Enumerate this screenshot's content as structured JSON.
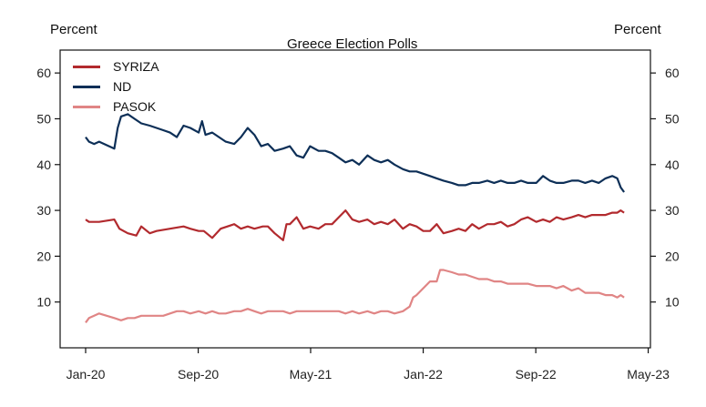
{
  "chart_data": {
    "type": "line",
    "title": "Greece Election Polls",
    "ylabel_left": "Percent",
    "ylabel_right": "Percent",
    "ylim": [
      0,
      65
    ],
    "xlim": [
      2020.0,
      2023.33
    ],
    "yticks": [
      10,
      20,
      30,
      40,
      50,
      60
    ],
    "xticks": [
      {
        "label": "Jan-20",
        "x": 2020.0
      },
      {
        "label": "Sep-20",
        "x": 2020.667
      },
      {
        "label": "May-21",
        "x": 2021.333
      },
      {
        "label": "Jan-22",
        "x": 2022.0
      },
      {
        "label": "Sep-22",
        "x": 2022.667
      },
      {
        "label": "May-23",
        "x": 2023.333
      }
    ],
    "grid": false,
    "legend": "top-left",
    "series": [
      {
        "name": "SYRIZA",
        "color": "#b22a2e",
        "x": [
          2020.0,
          2020.02,
          2020.05,
          2020.08,
          2020.17,
          2020.2,
          2020.25,
          2020.3,
          2020.33,
          2020.38,
          2020.42,
          2020.5,
          2020.58,
          2020.62,
          2020.67,
          2020.7,
          2020.75,
          2020.8,
          2020.88,
          2020.92,
          2020.96,
          2021.0,
          2021.05,
          2021.08,
          2021.12,
          2021.17,
          2021.19,
          2021.21,
          2021.25,
          2021.29,
          2021.33,
          2021.38,
          2021.42,
          2021.46,
          2021.5,
          2021.54,
          2021.58,
          2021.62,
          2021.67,
          2021.71,
          2021.75,
          2021.79,
          2021.83,
          2021.88,
          2021.92,
          2021.96,
          2022.0,
          2022.04,
          2022.08,
          2022.12,
          2022.17,
          2022.21,
          2022.25,
          2022.29,
          2022.33,
          2022.38,
          2022.42,
          2022.46,
          2022.5,
          2022.54,
          2022.58,
          2022.62,
          2022.67,
          2022.71,
          2022.75,
          2022.79,
          2022.83,
          2022.88,
          2022.92,
          2022.96,
          2023.0,
          2023.04,
          2023.08,
          2023.12,
          2023.15,
          2023.17,
          2023.19
        ],
        "values": [
          28,
          27.5,
          27.5,
          27.5,
          28,
          26,
          25,
          24.5,
          26.5,
          25,
          25.5,
          26,
          26.5,
          26,
          25.5,
          25.5,
          24,
          26,
          27,
          26,
          26.5,
          26,
          26.5,
          26.5,
          25,
          23.5,
          27,
          27,
          28.5,
          26,
          26.5,
          26,
          27,
          27,
          28.5,
          30,
          28,
          27.5,
          28,
          27,
          27.5,
          27,
          28,
          26,
          27,
          26.5,
          25.5,
          25.5,
          27,
          25,
          25.5,
          26,
          25.5,
          27,
          26,
          27,
          27,
          27.5,
          26.5,
          27,
          28,
          28.5,
          27.5,
          28,
          27.5,
          28.5,
          28,
          28.5,
          29,
          28.5,
          29,
          29,
          29,
          29.5,
          29.5,
          30,
          29.5
        ]
      },
      {
        "name": "ND",
        "color": "#0d2f57",
        "x": [
          2020.0,
          2020.02,
          2020.05,
          2020.08,
          2020.17,
          2020.19,
          2020.21,
          2020.25,
          2020.29,
          2020.33,
          2020.38,
          2020.42,
          2020.46,
          2020.5,
          2020.54,
          2020.58,
          2020.62,
          2020.67,
          2020.69,
          2020.71,
          2020.75,
          2020.79,
          2020.83,
          2020.88,
          2020.92,
          2020.96,
          2021.0,
          2021.04,
          2021.08,
          2021.12,
          2021.17,
          2021.21,
          2021.25,
          2021.29,
          2021.33,
          2021.38,
          2021.42,
          2021.46,
          2021.5,
          2021.54,
          2021.58,
          2021.62,
          2021.67,
          2021.71,
          2021.75,
          2021.79,
          2021.83,
          2021.88,
          2021.92,
          2021.96,
          2022.0,
          2022.04,
          2022.08,
          2022.12,
          2022.17,
          2022.21,
          2022.25,
          2022.29,
          2022.33,
          2022.38,
          2022.42,
          2022.46,
          2022.5,
          2022.54,
          2022.58,
          2022.62,
          2022.67,
          2022.71,
          2022.75,
          2022.79,
          2022.83,
          2022.88,
          2022.92,
          2022.96,
          2023.0,
          2023.04,
          2023.08,
          2023.12,
          2023.15,
          2023.17,
          2023.19
        ],
        "values": [
          46,
          45,
          44.5,
          45,
          43.5,
          48,
          50.5,
          51,
          50,
          49,
          48.5,
          48,
          47.5,
          47,
          46,
          48.5,
          48,
          47,
          49.5,
          46.5,
          47,
          46,
          45,
          44.5,
          46,
          48,
          46.5,
          44,
          44.5,
          43,
          43.5,
          44,
          42,
          41.5,
          44,
          43,
          43,
          42.5,
          41.5,
          40.5,
          41,
          40,
          42,
          41,
          40.5,
          41,
          40,
          39,
          38.5,
          38.5,
          38,
          37.5,
          37,
          36.5,
          36,
          35.5,
          35.5,
          36,
          36,
          36.5,
          36,
          36.5,
          36,
          36,
          36.5,
          36,
          36,
          37.5,
          36.5,
          36,
          36,
          36.5,
          36.5,
          36,
          36.5,
          36,
          37,
          37.5,
          37,
          35,
          34
        ]
      },
      {
        "name": "PASOK",
        "color": "#e08585",
        "x": [
          2020.0,
          2020.02,
          2020.05,
          2020.08,
          2020.17,
          2020.21,
          2020.25,
          2020.29,
          2020.33,
          2020.38,
          2020.42,
          2020.46,
          2020.5,
          2020.54,
          2020.58,
          2020.62,
          2020.67,
          2020.71,
          2020.75,
          2020.79,
          2020.83,
          2020.88,
          2020.92,
          2020.96,
          2021.0,
          2021.04,
          2021.08,
          2021.12,
          2021.17,
          2021.21,
          2021.25,
          2021.29,
          2021.33,
          2021.38,
          2021.42,
          2021.46,
          2021.5,
          2021.54,
          2021.58,
          2021.62,
          2021.67,
          2021.71,
          2021.75,
          2021.79,
          2021.83,
          2021.88,
          2021.92,
          2021.94,
          2021.96,
          2022.0,
          2022.04,
          2022.08,
          2022.1,
          2022.12,
          2022.17,
          2022.21,
          2022.25,
          2022.29,
          2022.33,
          2022.38,
          2022.42,
          2022.46,
          2022.5,
          2022.54,
          2022.58,
          2022.62,
          2022.67,
          2022.71,
          2022.75,
          2022.79,
          2022.83,
          2022.88,
          2022.92,
          2022.96,
          2023.0,
          2023.04,
          2023.08,
          2023.12,
          2023.15,
          2023.17,
          2023.19
        ],
        "values": [
          5.5,
          6.5,
          7,
          7.5,
          6.5,
          6,
          6.5,
          6.5,
          7,
          7,
          7,
          7,
          7.5,
          8,
          8,
          7.5,
          8,
          7.5,
          8,
          7.5,
          7.5,
          8,
          8,
          8.5,
          8,
          7.5,
          8,
          8,
          8,
          7.5,
          8,
          8,
          8,
          8,
          8,
          8,
          8,
          7.5,
          8,
          7.5,
          8,
          7.5,
          8,
          8,
          7.5,
          8,
          9,
          11,
          11.5,
          13,
          14.5,
          14.5,
          17,
          17,
          16.5,
          16,
          16,
          15.5,
          15,
          15,
          14.5,
          14.5,
          14,
          14,
          14,
          14,
          13.5,
          13.5,
          13.5,
          13,
          13.5,
          12.5,
          13,
          12,
          12,
          12,
          11.5,
          11.5,
          11,
          11.5,
          11
        ]
      }
    ]
  }
}
